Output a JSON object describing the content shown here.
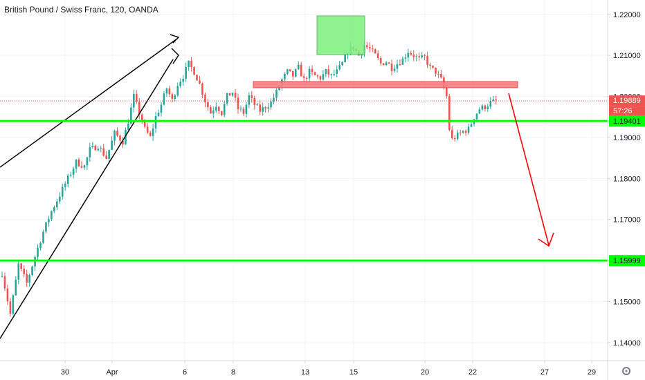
{
  "title": "British Pound / Swiss Franc, 120, OANDA",
  "colors": {
    "up": "#26a69a",
    "down": "#ef5350",
    "grid": "#f0f3fa",
    "axis_text": "#131722",
    "support": "#00ff00",
    "resistance_fill": "#f77c80",
    "resistance_stroke": "#e53935",
    "top_zone_fill": "#7cf07c",
    "top_zone_stroke": "#4caf50",
    "arrow": "#ff0000",
    "wedge": "#000000",
    "price_badge": "#ef5350"
  },
  "price_badge": {
    "price": "1.19889",
    "countdown": "57:26"
  },
  "support_levels": [
    {
      "price": 1.19401,
      "label": "1.19401"
    },
    {
      "price": 1.15999,
      "label": "1.15999"
    }
  ],
  "chart_data": {
    "type": "candlestick",
    "title": "British Pound / Swiss Franc, 120, OANDA",
    "ylim": [
      1.1356,
      1.2235
    ],
    "y_ticks": [
      "1.22000",
      "1.21000",
      "1.20000",
      "1.19000",
      "1.18000",
      "1.17000",
      "1.16000",
      "1.15000",
      "1.14000"
    ],
    "x_ticks": [
      "30",
      "Apr",
      "6",
      "8",
      "13",
      "15",
      "20",
      "22",
      "27",
      "29"
    ],
    "close_path": [
      [
        0,
        1.157
      ],
      [
        3,
        1.147
      ],
      [
        6,
        1.159
      ],
      [
        9,
        1.1545
      ],
      [
        12,
        1.161
      ],
      [
        15,
        1.167
      ],
      [
        18,
        1.172
      ],
      [
        21,
        1.176
      ],
      [
        24,
        1.18
      ],
      [
        27,
        1.184
      ],
      [
        30,
        1.183
      ],
      [
        32,
        1.187
      ],
      [
        35,
        1.188
      ],
      [
        38,
        1.185
      ],
      [
        41,
        1.191
      ],
      [
        44,
        1.189
      ],
      [
        46,
        1.194
      ],
      [
        48,
        1.2
      ],
      [
        50,
        1.196
      ],
      [
        52,
        1.192
      ],
      [
        54,
        1.19
      ],
      [
        56,
        1.195
      ],
      [
        58,
        1.198
      ],
      [
        60,
        1.202
      ],
      [
        62,
        1.199
      ],
      [
        64,
        1.203
      ],
      [
        66,
        1.205
      ],
      [
        68,
        1.208
      ],
      [
        70,
        1.206
      ],
      [
        72,
        1.203
      ],
      [
        74,
        1.199
      ],
      [
        76,
        1.196
      ],
      [
        78,
        1.198
      ],
      [
        80,
        1.196
      ],
      [
        82,
        1.2
      ],
      [
        84,
        1.201
      ],
      [
        86,
        1.197
      ],
      [
        88,
        1.196
      ],
      [
        90,
        1.2
      ],
      [
        92,
        1.198
      ],
      [
        94,
        1.1965
      ],
      [
        96,
        1.1975
      ],
      [
        98,
        1.1985
      ],
      [
        100,
        1.201
      ],
      [
        102,
        1.204
      ],
      [
        104,
        1.206
      ],
      [
        106,
        1.205
      ],
      [
        108,
        1.207
      ],
      [
        110,
        1.204
      ],
      [
        112,
        1.206
      ],
      [
        114,
        1.205
      ],
      [
        116,
        1.2045
      ],
      [
        118,
        1.206
      ],
      [
        120,
        1.205
      ],
      [
        122,
        1.206
      ],
      [
        124,
        1.208
      ],
      [
        126,
        1.211
      ],
      [
        128,
        1.212
      ],
      [
        130,
        1.21
      ],
      [
        132,
        1.2125
      ],
      [
        134,
        1.2115
      ],
      [
        136,
        1.21
      ],
      [
        138,
        1.208
      ],
      [
        140,
        1.2085
      ],
      [
        142,
        1.207
      ],
      [
        144,
        1.208
      ],
      [
        146,
        1.209
      ],
      [
        148,
        1.211
      ],
      [
        150,
        1.21
      ],
      [
        152,
        1.209
      ],
      [
        154,
        1.2095
      ],
      [
        156,
        1.207
      ],
      [
        158,
        1.206
      ],
      [
        160,
        1.204
      ],
      [
        162,
        1.2
      ],
      [
        163,
        1.192
      ],
      [
        164,
        1.1895
      ],
      [
        166,
        1.1905
      ],
      [
        168,
        1.1915
      ],
      [
        170,
        1.192
      ],
      [
        172,
        1.195
      ],
      [
        174,
        1.197
      ],
      [
        176,
        1.1975
      ],
      [
        178,
        1.1985
      ],
      [
        180,
        1.1989
      ]
    ]
  }
}
